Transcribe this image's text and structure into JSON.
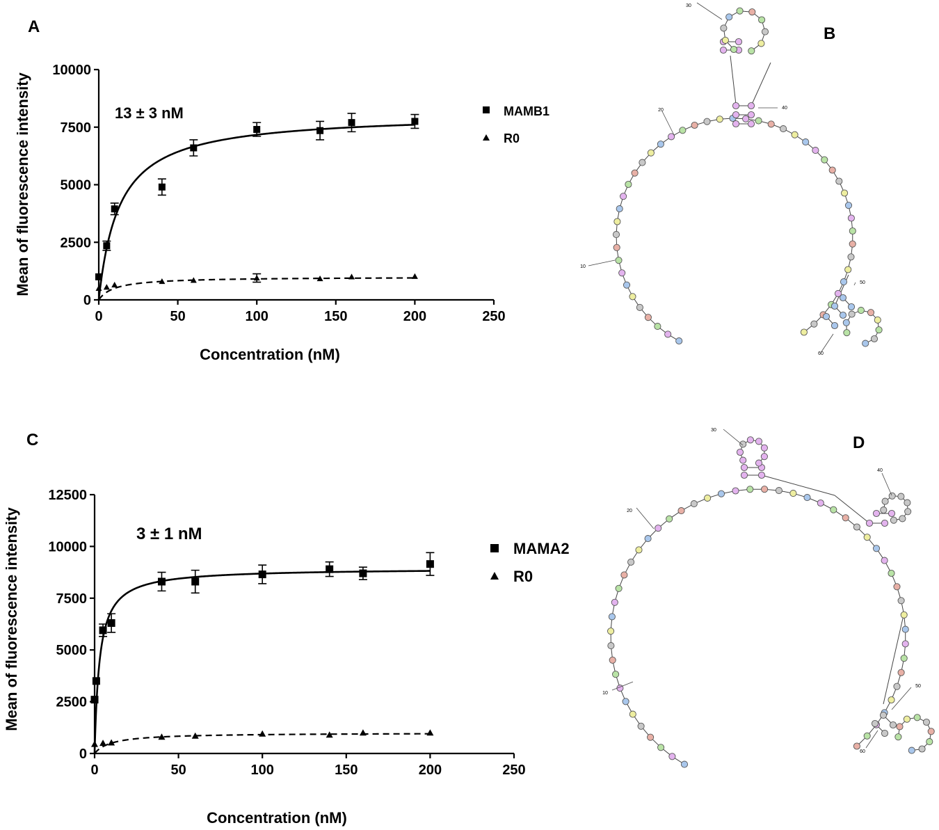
{
  "panels": {
    "a": "A",
    "b": "B",
    "c": "C",
    "d": "D"
  },
  "chart_data": [
    {
      "type": "scatter",
      "panel": "A",
      "xlabel": "Concentration (nM)",
      "ylabel": "Mean of fluorescence intensity",
      "xlim": [
        0,
        250
      ],
      "ylim": [
        0,
        10000
      ],
      "x_ticks": [
        0,
        50,
        100,
        150,
        200,
        250
      ],
      "y_ticks": [
        0,
        2500,
        5000,
        7500,
        10000
      ],
      "annotation": "13 ± 3 nM",
      "legend_position": "right",
      "grid": false,
      "series": [
        {
          "name": "MAMB1",
          "marker": "square",
          "fit": "solid",
          "fit_params": {
            "bmax": 8100,
            "kd": 13
          },
          "x": [
            0,
            5,
            10,
            40,
            60,
            100,
            140,
            160,
            200
          ],
          "y": [
            1000,
            2350,
            3950,
            4900,
            6600,
            7400,
            7350,
            7700,
            7750
          ],
          "error": [
            0,
            200,
            250,
            350,
            350,
            300,
            400,
            400,
            300
          ]
        },
        {
          "name": "R0",
          "marker": "triangle",
          "fit": "dashed",
          "fit_params": {
            "bmax": 1000,
            "kd": 10,
            "base": 0
          },
          "x": [
            0,
            5,
            10,
            40,
            60,
            100,
            140,
            160,
            200
          ],
          "y": [
            500,
            550,
            650,
            800,
            850,
            950,
            920,
            1000,
            1020
          ],
          "error": [
            0,
            0,
            0,
            0,
            0,
            180,
            0,
            0,
            0
          ]
        }
      ]
    },
    {
      "type": "scatter",
      "panel": "C",
      "xlabel": "Concentration (nM)",
      "ylabel": "Mean of fluorescence intensity",
      "xlim": [
        0,
        250
      ],
      "ylim": [
        0,
        12500
      ],
      "x_ticks": [
        0,
        50,
        100,
        150,
        200,
        250
      ],
      "y_ticks": [
        0,
        2500,
        5000,
        7500,
        10000,
        12500
      ],
      "annotation": "3 ± 1 nM",
      "legend_position": "right",
      "grid": false,
      "series": [
        {
          "name": "MAMA2",
          "marker": "square",
          "fit": "solid",
          "fit_params": {
            "bmax": 8950,
            "kd": 3
          },
          "x": [
            0,
            1,
            5,
            10,
            40,
            60,
            100,
            140,
            160,
            200
          ],
          "y": [
            2600,
            3500,
            5950,
            6300,
            8300,
            8300,
            8650,
            8900,
            8700,
            9150
          ],
          "error": [
            0,
            0,
            300,
            450,
            450,
            550,
            450,
            350,
            300,
            550
          ]
        },
        {
          "name": "R0",
          "marker": "triangle",
          "fit": "dashed",
          "fit_params": {
            "bmax": 1000,
            "kd": 10,
            "base": 0
          },
          "x": [
            0,
            5,
            10,
            40,
            60,
            100,
            140,
            160,
            200
          ],
          "y": [
            450,
            500,
            520,
            800,
            850,
            950,
            900,
            1000,
            1000
          ],
          "error": [
            0,
            0,
            0,
            0,
            0,
            0,
            0,
            0,
            0
          ]
        }
      ]
    }
  ],
  "structures": {
    "b": {
      "labels": [
        "30",
        "20",
        "40",
        "10",
        "50",
        "60"
      ],
      "colors": {
        "pink": "#e3b3ee",
        "green": "#b9e3a6",
        "blue": "#a9c7ec",
        "yellow": "#eeeea0",
        "gray": "#c8c8c8",
        "red": "#e8b0a6"
      }
    },
    "d": {
      "labels": [
        "30",
        "20",
        "40",
        "10",
        "50",
        "60"
      ]
    }
  }
}
